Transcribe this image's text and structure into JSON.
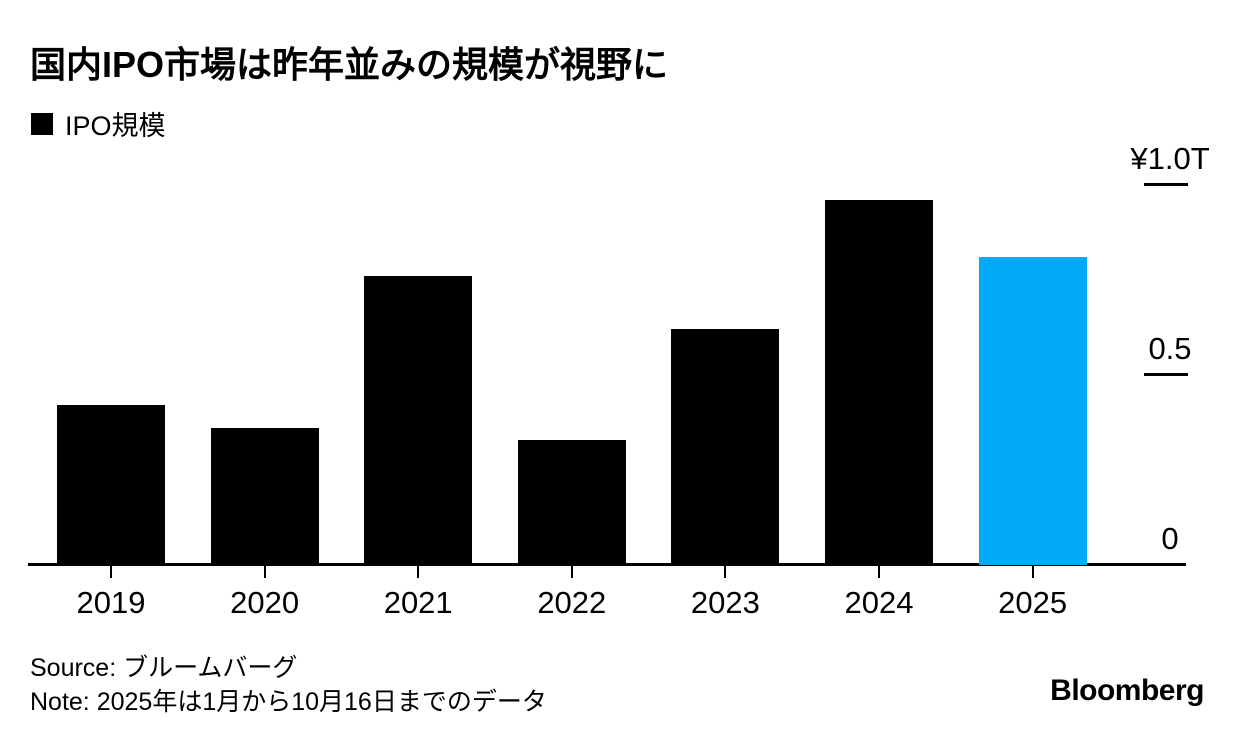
{
  "header": {
    "title": "国内IPO市場は昨年並みの規模が視野に"
  },
  "legend": {
    "label": "IPO規模",
    "swatch_color": "#000000"
  },
  "chart_data": {
    "type": "bar",
    "title": "国内IPO市場は昨年並みの規模が視野に",
    "series_name": "IPO規模",
    "categories": [
      "2019",
      "2020",
      "2021",
      "2022",
      "2023",
      "2024",
      "2025"
    ],
    "values": [
      0.42,
      0.36,
      0.76,
      0.33,
      0.62,
      0.96,
      0.81
    ],
    "unit": "trillion yen",
    "ylim": [
      0,
      1.0
    ],
    "yticks": [
      {
        "label": "¥1.0T",
        "value": 1.0
      },
      {
        "label": "0.5",
        "value": 0.5
      },
      {
        "label": "0",
        "value": 0
      }
    ],
    "bar_default_color": "#000000",
    "bar_highlight_color": "#00aaf6",
    "highlight_category": "2025",
    "grid": false,
    "legend_position": "top-left",
    "value_axis_side": "right"
  },
  "footer": {
    "source": "Source: ブルームバーグ",
    "note": "Note: 2025年は1月から10月16日までのデータ",
    "logo": "Bloomberg"
  }
}
